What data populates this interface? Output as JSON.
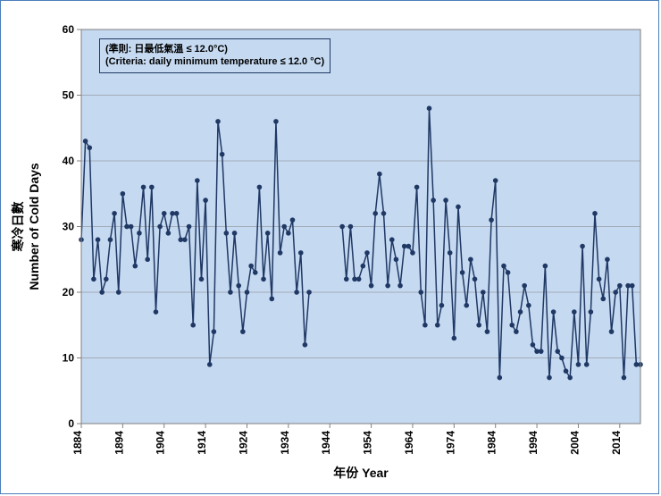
{
  "chart": {
    "type": "line",
    "background_color": "#c5d9f1",
    "frame_border_color": "#4a7ebb",
    "plot_border_color": "#808080",
    "grid_color": "#808080",
    "gridline_width": 0.5,
    "axis_line_color": "#808080",
    "line_color": "#1f3864",
    "line_width": 1.5,
    "marker_color": "#1f3864",
    "marker_radius": 2.8,
    "marker_style": "circle",
    "xlabel_zh": "年份",
    "xlabel_en": "Year",
    "ylabel_zh": "寒冷日數",
    "ylabel_en": "Number of Cold Days",
    "label_fontsize": 14,
    "label_fontweight": "bold",
    "tick_fontsize": 12,
    "tick_fontweight": "bold",
    "tick_color": "#000000",
    "ylim": [
      0,
      60
    ],
    "ytick_step": 10,
    "yticks": [
      0,
      10,
      20,
      30,
      40,
      50,
      60
    ],
    "xlim": [
      1884,
      2019
    ],
    "xtick_step": 10,
    "xticks": [
      1884,
      1894,
      1904,
      1914,
      1924,
      1934,
      1944,
      1954,
      1964,
      1974,
      1984,
      1994,
      2004,
      2014
    ],
    "xtick_rotation": 90,
    "criteria_box": {
      "line1": "(準則: 日最低氣溫 ≤ 12.0°C)",
      "line2": "(Criteria: daily minimum temperature ≤ 12.0 °C)",
      "fontsize": 11,
      "fontweight": "bold",
      "border_color": "#1f3864",
      "background_color": "#c5d9f1"
    },
    "data_gap_years": [
      1940,
      1941,
      1942,
      1943,
      1944,
      1945,
      1946
    ],
    "years": [
      1884,
      1885,
      1886,
      1887,
      1888,
      1889,
      1890,
      1891,
      1892,
      1893,
      1894,
      1895,
      1896,
      1897,
      1898,
      1899,
      1900,
      1901,
      1902,
      1903,
      1904,
      1905,
      1906,
      1907,
      1908,
      1909,
      1910,
      1911,
      1912,
      1913,
      1914,
      1915,
      1916,
      1917,
      1918,
      1919,
      1920,
      1921,
      1922,
      1923,
      1924,
      1925,
      1926,
      1927,
      1928,
      1929,
      1930,
      1931,
      1932,
      1933,
      1934,
      1935,
      1936,
      1937,
      1938,
      1939,
      1947,
      1948,
      1949,
      1950,
      1951,
      1952,
      1953,
      1954,
      1955,
      1956,
      1957,
      1958,
      1959,
      1960,
      1961,
      1962,
      1963,
      1964,
      1965,
      1966,
      1967,
      1968,
      1969,
      1970,
      1971,
      1972,
      1973,
      1974,
      1975,
      1976,
      1977,
      1978,
      1979,
      1980,
      1981,
      1982,
      1983,
      1984,
      1985,
      1986,
      1987,
      1988,
      1989,
      1990,
      1991,
      1992,
      1993,
      1994,
      1995,
      1996,
      1997,
      1998,
      1999,
      2000,
      2001,
      2002,
      2003,
      2004,
      2005,
      2006,
      2007,
      2008,
      2009,
      2010,
      2011,
      2012,
      2013,
      2014,
      2015,
      2016,
      2017,
      2018,
      2019
    ],
    "values": [
      28,
      43,
      42,
      22,
      28,
      20,
      22,
      28,
      32,
      20,
      35,
      30,
      30,
      24,
      29,
      36,
      25,
      36,
      17,
      30,
      32,
      29,
      32,
      32,
      28,
      28,
      30,
      15,
      37,
      22,
      34,
      9,
      14,
      46,
      41,
      29,
      20,
      29,
      21,
      14,
      20,
      24,
      23,
      36,
      22,
      29,
      19,
      46,
      26,
      30,
      29,
      31,
      20,
      26,
      12,
      20,
      30,
      22,
      30,
      22,
      22,
      24,
      26,
      21,
      32,
      38,
      32,
      21,
      28,
      25,
      21,
      27,
      27,
      26,
      36,
      20,
      15,
      48,
      34,
      15,
      18,
      34,
      26,
      13,
      33,
      23,
      18,
      25,
      22,
      15,
      20,
      14,
      31,
      37,
      7,
      24,
      23,
      15,
      14,
      17,
      21,
      18,
      12,
      11,
      11,
      24,
      7,
      17,
      11,
      10,
      8,
      7,
      17,
      9,
      27,
      9,
      17,
      32,
      22,
      19,
      25,
      14,
      20,
      21,
      7,
      21,
      21,
      9,
      9
    ]
  }
}
